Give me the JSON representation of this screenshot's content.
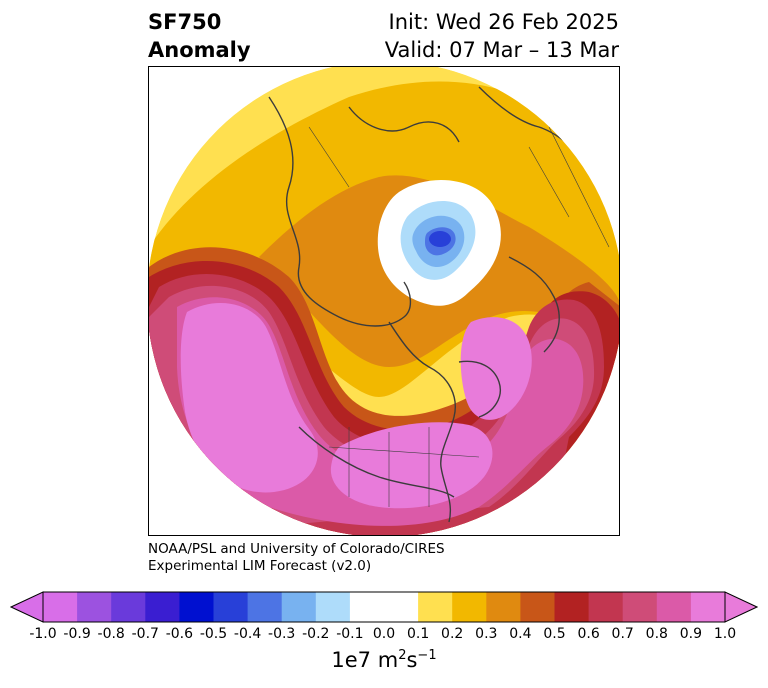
{
  "header": {
    "title_line1": "SF750",
    "title_line2": "Anomaly",
    "init": "Init: Wed 26 Feb 2025",
    "valid": "Valid: 07 Mar – 13 Mar"
  },
  "credit": {
    "line1": "NOAA/PSL and University of Colorado/CIRES",
    "line2": "Experimental LIM Forecast (v2.0)"
  },
  "colorbar": {
    "ticks": [
      "-1.0",
      "-0.9",
      "-0.8",
      "-0.7",
      "-0.6",
      "-0.5",
      "-0.4",
      "-0.3",
      "-0.2",
      "-0.1",
      "0.0",
      "0.1",
      "0.2",
      "0.3",
      "0.4",
      "0.5",
      "0.6",
      "0.7",
      "0.8",
      "0.9",
      "1.0"
    ],
    "colors": [
      "#d86ee8",
      "#9c52e0",
      "#6a3adb",
      "#3a1ed1",
      "#0010d0",
      "#2840d8",
      "#4d74e4",
      "#78b2f0",
      "#aedcfa",
      "#ffffff",
      "#ffffff",
      "#ffe050",
      "#f2b800",
      "#e08a10",
      "#c85618",
      "#b22222",
      "#c23650",
      "#cf4c78",
      "#db5aa8",
      "#e87bda"
    ],
    "label_base": "1e7 m",
    "label_exp1": "2",
    "label_mid": "s",
    "label_exp2": "−1"
  }
}
